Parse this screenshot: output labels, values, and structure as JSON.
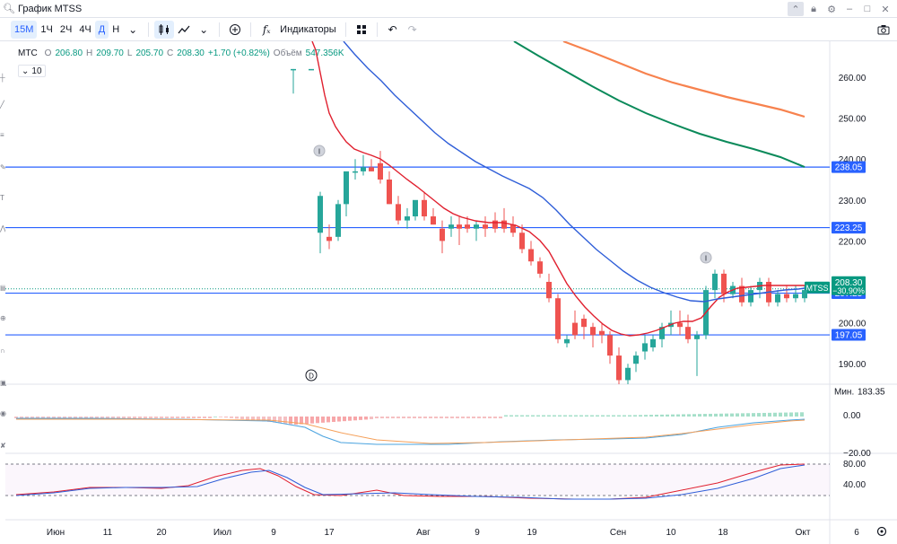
{
  "window": {
    "title": "График MTSS",
    "search_icon": "search-icon",
    "buttons": [
      "chevron-up-icon",
      "lock-icon",
      "gear-icon",
      "minimize-icon",
      "maximize-icon",
      "close-icon"
    ]
  },
  "toolbar": {
    "intervals": [
      {
        "label": "15М",
        "active": true
      },
      {
        "label": "1Ч",
        "active": false
      },
      {
        "label": "2Ч",
        "active": false
      },
      {
        "label": "4Ч",
        "active": false
      },
      {
        "label": "Д",
        "active": true
      },
      {
        "label": "Н",
        "active": false
      }
    ],
    "indicators_label": "Индикаторы"
  },
  "legend": {
    "symbol": "МТС",
    "o_label": "O",
    "o_value": "206.80",
    "h_label": "H",
    "h_value": "209.70",
    "l_label": "L",
    "l_value": "205.70",
    "c_label": "C",
    "c_value": "208.30",
    "change": "+1.70 (+0.82%)",
    "volume_label": "Объём",
    "volume_value": "547.356K",
    "collapsed_count": "10"
  },
  "price_axis": {
    "ticks": [
      "260.00",
      "250.00",
      "240.00",
      "230.00",
      "220.00",
      "210.00",
      "200.00",
      "190.00"
    ],
    "min_label": "Мин.",
    "min_value": "183.35"
  },
  "horizontal_lines": [
    {
      "price": 238.05,
      "label": "238.05"
    },
    {
      "price": 223.25,
      "label": "223.25"
    },
    {
      "price": 207.25,
      "label": "207.25"
    },
    {
      "price": 197.05,
      "label": "197.05"
    }
  ],
  "current_price_tag": {
    "symbol": "MTSS",
    "price": "208.30",
    "change": "−30.90%"
  },
  "macd_axis": {
    "ticks": [
      "0.00",
      "−20.00"
    ]
  },
  "rsi_axis": {
    "ticks": [
      "80.00",
      "40.00"
    ]
  },
  "time_axis": {
    "labels": [
      "Июн",
      "11",
      "20",
      "Июл",
      "9",
      "17",
      "Авг",
      "9",
      "19",
      "Сен",
      "10",
      "18",
      "Окт",
      "6"
    ]
  },
  "markers": [
    "I",
    "I",
    "D"
  ],
  "colors": {
    "up": "#089981",
    "up_candle": "#26a69a",
    "down": "#f23645",
    "down_candle": "#ef5350",
    "hline": "#2962ff",
    "ema_red": "#e0202f",
    "ema_blue": "#2f5ed8",
    "ema_green": "#0b8a5a",
    "ema_orange": "#f7824e"
  }
}
